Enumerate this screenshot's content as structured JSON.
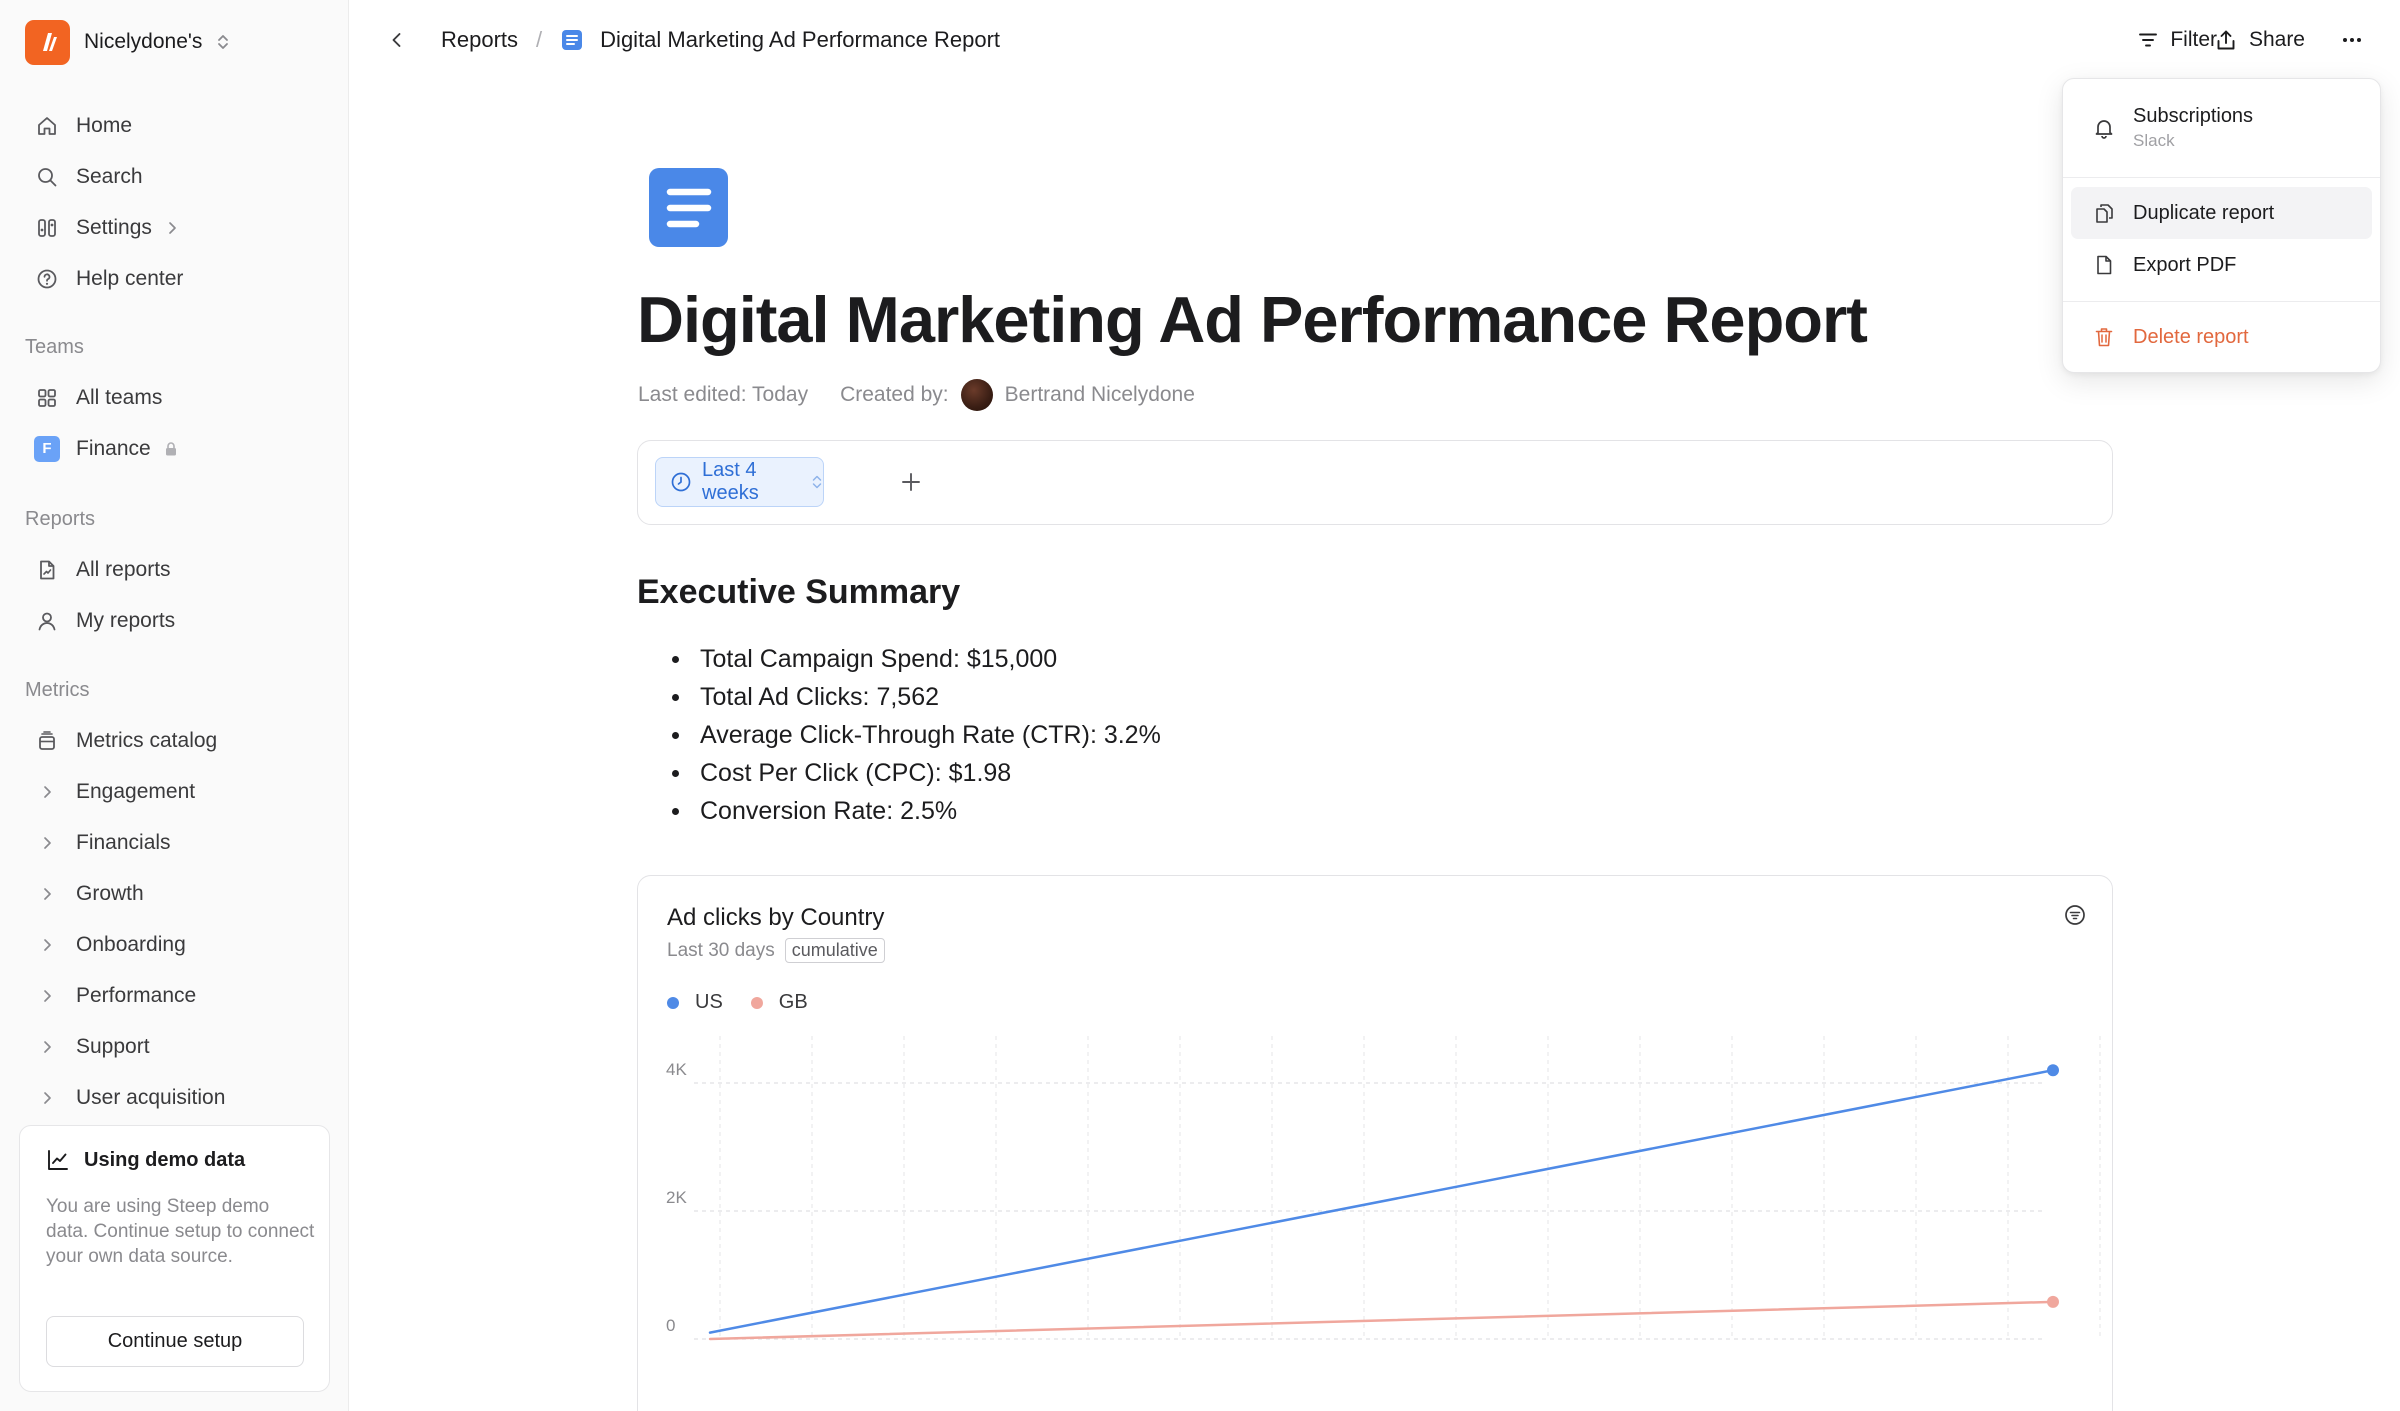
{
  "workspace": {
    "name": "Nicelydone's",
    "logo_letter": "//",
    "logo_color": "#f26422"
  },
  "sidebar": {
    "nav": [
      {
        "label": "Home",
        "icon": "home-icon"
      },
      {
        "label": "Search",
        "icon": "search-icon"
      },
      {
        "label": "Settings",
        "icon": "settings-icon"
      },
      {
        "label": "Help center",
        "icon": "help-icon"
      }
    ],
    "teams_heading": "Teams",
    "teams": [
      {
        "label": "All teams",
        "icon": "grid-icon"
      },
      {
        "label": "Finance",
        "badge": "F",
        "locked": true
      }
    ],
    "reports_heading": "Reports",
    "reports": [
      {
        "label": "All reports",
        "icon": "reports-icon"
      },
      {
        "label": "My reports",
        "icon": "user-icon"
      }
    ],
    "metrics_heading": "Metrics",
    "metrics_catalog": "Metrics catalog",
    "metrics": [
      {
        "label": "Engagement"
      },
      {
        "label": "Financials"
      },
      {
        "label": "Growth"
      },
      {
        "label": "Onboarding"
      },
      {
        "label": "Performance"
      },
      {
        "label": "Support"
      },
      {
        "label": "User acquisition"
      }
    ],
    "demo": {
      "title": "Using demo data",
      "text": "You are using Steep demo data. Continue setup to connect your own data source.",
      "button": "Continue setup"
    }
  },
  "header": {
    "breadcrumb_root": "Reports",
    "breadcrumb_separator": "/",
    "breadcrumb_current": "Digital Marketing Ad Performance Report",
    "filter_label": "Filter",
    "share_label": "Share"
  },
  "report": {
    "title": "Digital Marketing Ad Performance Report",
    "last_edited": "Last edited: Today",
    "created_by_label": "Created by:",
    "author": "Bertrand Nicelydone",
    "date_range": "Last 4 weeks",
    "summary_title": "Executive Summary",
    "summary": [
      "Total Campaign Spend: $15,000",
      "Total Ad Clicks: 7,562",
      "Average Click-Through Rate (CTR): 3.2%",
      "Cost Per Click (CPC): $1.98",
      "Conversion Rate: 2.5%"
    ]
  },
  "chart": {
    "title": "Ad clicks by Country",
    "period": "Last 30 days",
    "tag": "cumulative"
  },
  "chart_data": {
    "type": "line",
    "title": "Ad clicks by Country",
    "x": [
      1,
      30
    ],
    "ylim": [
      0,
      4500
    ],
    "yticks": [
      0,
      2000,
      4000
    ],
    "ytick_labels": [
      "0",
      "2K",
      "4K"
    ],
    "grid": true,
    "legend": "top-left",
    "series": [
      {
        "name": "US",
        "color": "#4f8ae6",
        "values": [
          100,
          4200
        ]
      },
      {
        "name": "GB",
        "color": "#f0a79d",
        "values": [
          0,
          580
        ]
      }
    ]
  },
  "menu": {
    "subscriptions": "Subscriptions",
    "subscriptions_sub": "Slack",
    "duplicate": "Duplicate report",
    "export": "Export PDF",
    "delete": "Delete report"
  },
  "colors": {
    "accent": "#4a88e8",
    "danger": "#e2683e",
    "brand": "#f26422"
  }
}
